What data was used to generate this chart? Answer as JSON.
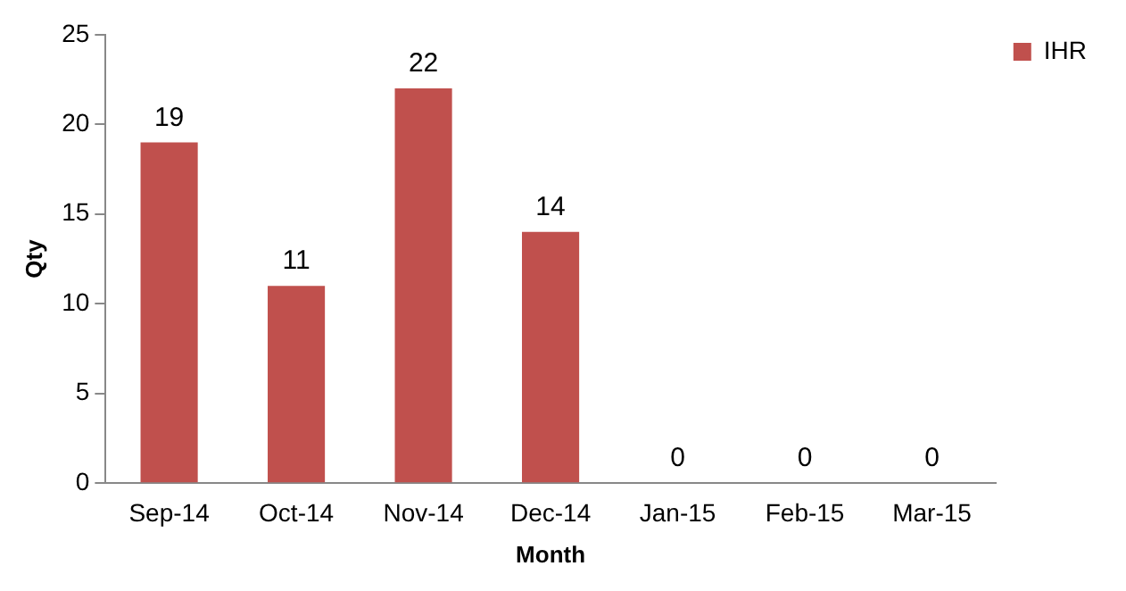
{
  "chart_data": {
    "type": "bar",
    "xlabel": "Month",
    "ylabel": "Qty",
    "categories": [
      "Sep-14",
      "Oct-14",
      "Nov-14",
      "Dec-14",
      "Jan-15",
      "Feb-15",
      "Mar-15"
    ],
    "series": [
      {
        "name": "IHR",
        "color": "#c0504d",
        "values": [
          19,
          11,
          22,
          14,
          0,
          0,
          0
        ]
      }
    ],
    "ylim": [
      0,
      25
    ],
    "yticks": [
      0,
      5,
      10,
      15,
      20,
      25
    ],
    "grid": false,
    "legend": "top right",
    "data_labels": true
  }
}
